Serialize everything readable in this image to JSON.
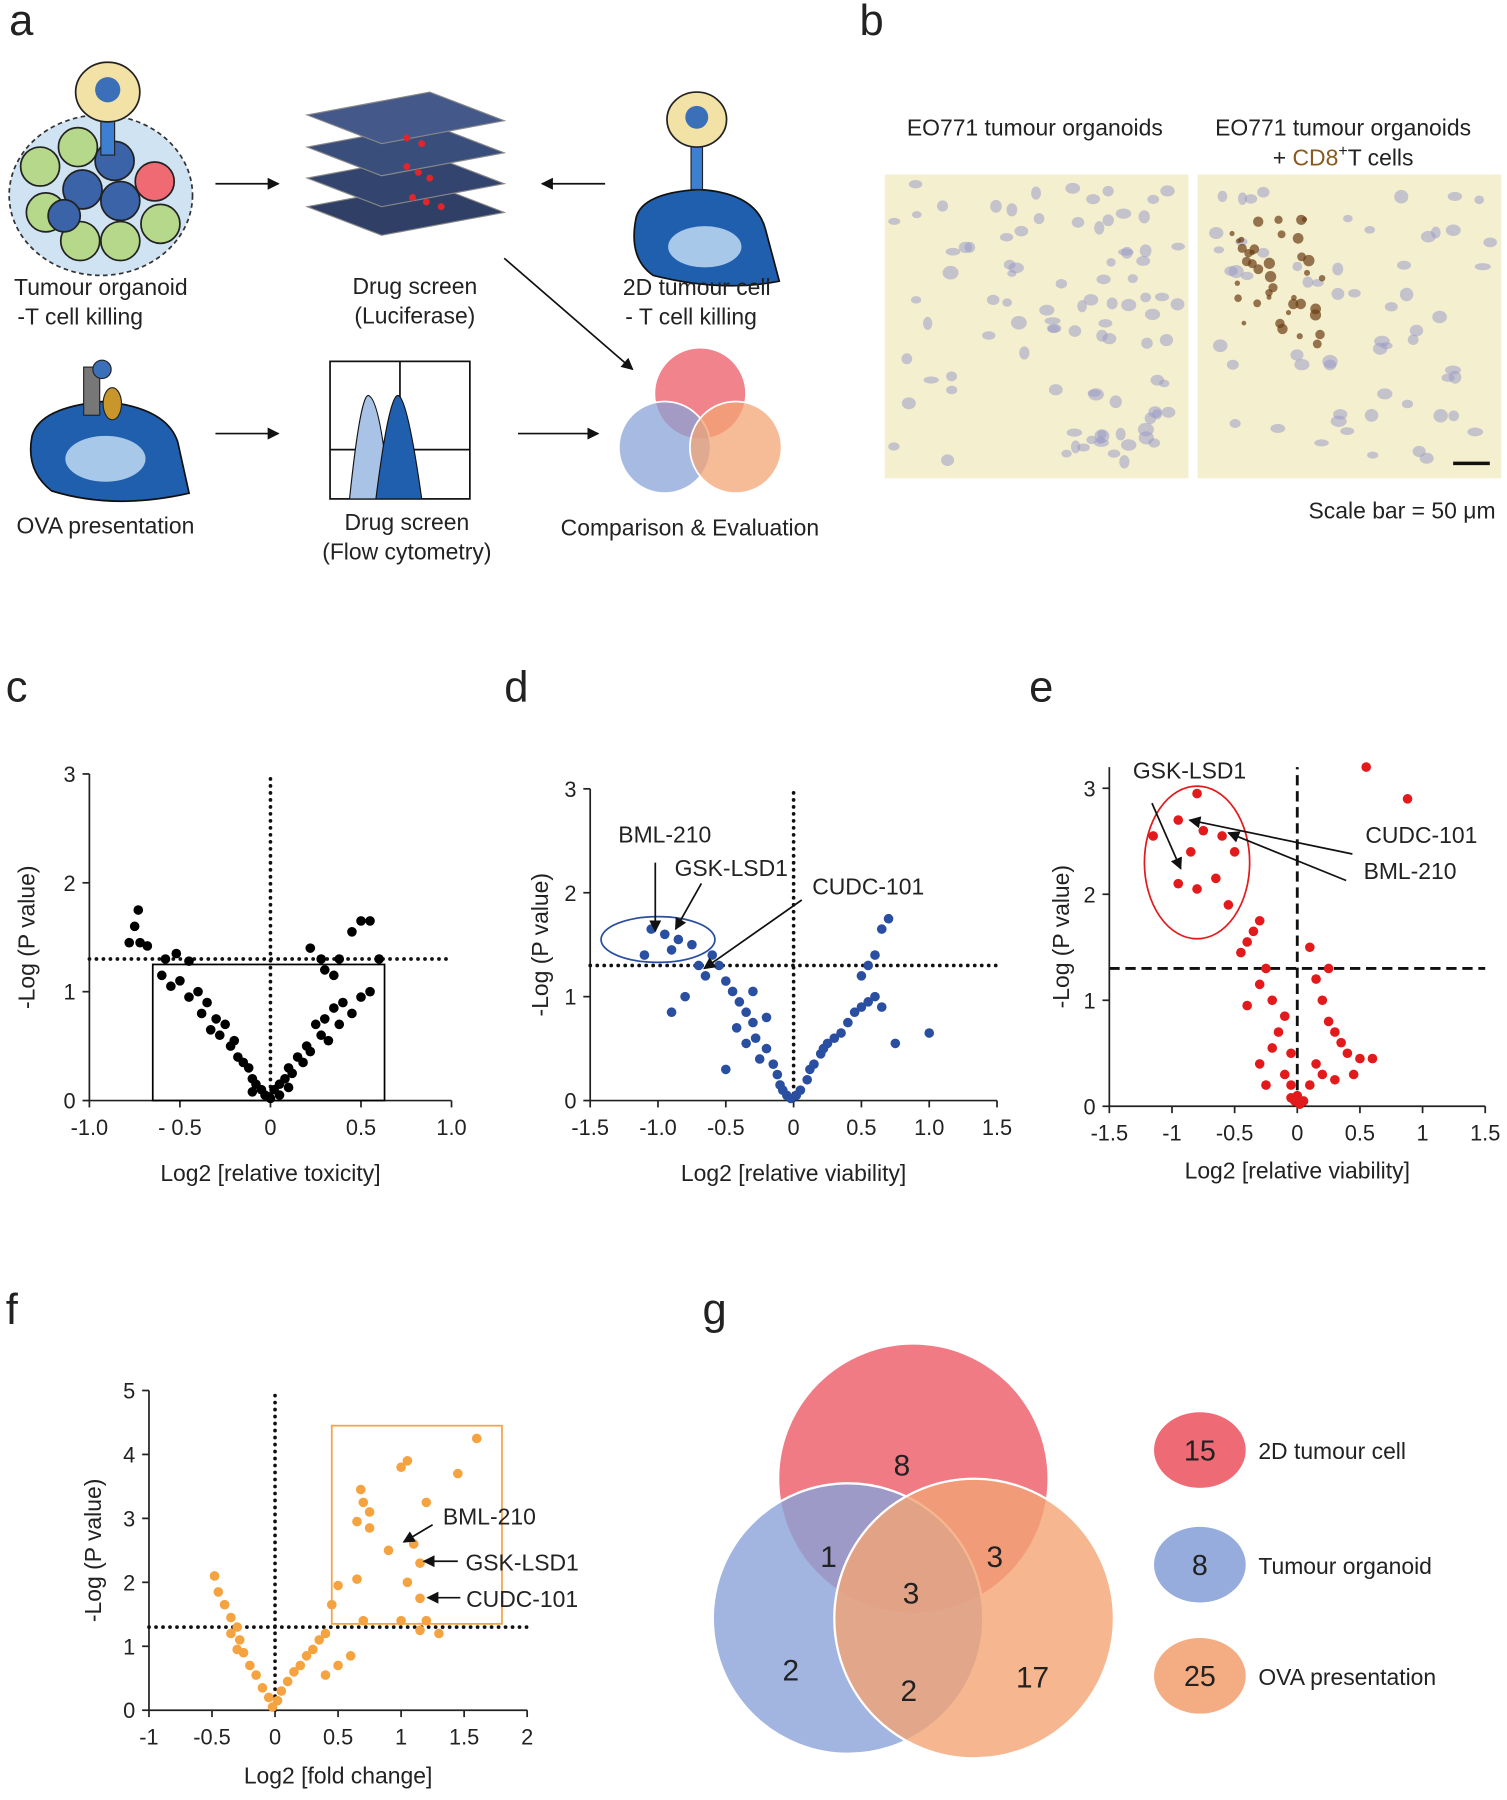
{
  "panel_labels": [
    "a",
    "b",
    "c",
    "d",
    "e",
    "f",
    "g"
  ],
  "schematic": {
    "labels": [
      "Tumour organoid",
      "-T cell killing",
      "Drug screen",
      "(Luciferase)",
      "2D tumour cell",
      "- T cell killing",
      "OVA presentation",
      "Drug screen",
      "(Flow cytometry)",
      "Comparison & Evaluation"
    ]
  },
  "micrographs": {
    "left_title": "EO771 tumour organoids",
    "right_title": "EO771 tumour organoids",
    "right_title_parts": [
      "+",
      "CD8",
      "+",
      "T cells"
    ],
    "scale_bar": "Scale bar = 50 μm"
  },
  "chart_data": [
    {
      "type": "scatter",
      "x_label": "Log2 [relative toxicity]",
      "y_label": "-Log (P value)",
      "xlim": [
        -1,
        1
      ],
      "ylim": [
        0,
        3
      ],
      "xticks": [
        {
          "value": -1,
          "label": "-1.0"
        },
        {
          "value": -0.5,
          "label": "- 0.5"
        },
        0,
        0.5,
        {
          "value": 1,
          "label": "1.0"
        }
      ],
      "yticks": [
        0,
        1,
        2,
        3
      ],
      "reference_lines": {
        "x": 0,
        "y": 1.3,
        "style": "dotted"
      },
      "highlight": {
        "shape": "rect",
        "x": [
          -0.65,
          0.63
        ],
        "y": [
          0,
          1.25
        ],
        "color": "#000000"
      },
      "series": [
        {
          "color": "#000000",
          "x": [
            -0.73,
            -0.75,
            -0.72,
            -0.68,
            -0.78,
            -0.58,
            -0.52,
            -0.45,
            -0.6,
            -0.55,
            -0.5,
            -0.45,
            -0.4,
            -0.35,
            -0.38,
            -0.3,
            -0.33,
            -0.28,
            -0.25,
            -0.22,
            -0.2,
            -0.18,
            -0.15,
            -0.12,
            -0.1,
            -0.08,
            -0.05,
            -0.03,
            0,
            0.02,
            0.05,
            0.08,
            0.1,
            0.12,
            0.15,
            0.18,
            0.2,
            0.22,
            0.25,
            0.28,
            0.3,
            0.32,
            0.35,
            0.38,
            0.4,
            0.45,
            0.5,
            0.55,
            0.3,
            0.35,
            0.38,
            0.45,
            0.5,
            0.55,
            0.6,
            0.28,
            0.22,
            -0.1,
            0.05,
            0.1
          ],
          "y": [
            1.75,
            1.6,
            1.45,
            1.42,
            1.45,
            1.3,
            1.35,
            1.28,
            1.15,
            1.05,
            1.1,
            0.95,
            1.0,
            0.9,
            0.8,
            0.75,
            0.65,
            0.6,
            0.7,
            0.5,
            0.55,
            0.4,
            0.35,
            0.3,
            0.2,
            0.15,
            0.1,
            0.05,
            0.02,
            0.1,
            0.15,
            0.2,
            0.3,
            0.25,
            0.4,
            0.35,
            0.5,
            0.45,
            0.7,
            0.6,
            0.75,
            0.55,
            0.85,
            0.7,
            0.9,
            0.8,
            0.95,
            1.0,
            1.2,
            1.15,
            1.3,
            1.55,
            1.65,
            1.65,
            1.3,
            1.3,
            1.4,
            0.08,
            0.05,
            0.12
          ]
        }
      ]
    },
    {
      "type": "scatter",
      "x_label": "Log2 [relative viability]",
      "y_label": "-Log (P value)",
      "xlim": [
        -1.5,
        1.5
      ],
      "ylim": [
        0,
        3
      ],
      "xticks": [
        -1.5,
        {
          "value": -1,
          "label": "-1.0"
        },
        -0.5,
        0,
        0.5,
        {
          "value": 1,
          "label": "1.0"
        },
        1.5
      ],
      "yticks": [
        0,
        1,
        2,
        3
      ],
      "reference_lines": {
        "x": 0,
        "y": 1.3,
        "style": "dotted"
      },
      "highlight": {
        "shape": "ellipse",
        "center": [
          -1.0,
          1.55
        ],
        "radius": [
          0.42,
          0.22
        ],
        "color": "#2a4ea0"
      },
      "annotations": [
        {
          "text": "BML-210",
          "at": [
            -0.95,
            2.56
          ],
          "from": [
            -1.02,
            2.29
          ],
          "to": [
            -1.02,
            1.63
          ]
        },
        {
          "text": "GSK-LSD1",
          "at": [
            -0.46,
            2.24
          ],
          "from": [
            -0.68,
            2.09
          ],
          "to": [
            -0.87,
            1.65
          ]
        },
        {
          "text": "CUDC-101",
          "at": [
            0.55,
            2.06
          ],
          "from": [
            0.06,
            1.93
          ],
          "to": [
            -0.66,
            1.27
          ]
        }
      ],
      "series": [
        {
          "color": "#2a4ea0",
          "x": [
            -1.05,
            -0.95,
            -0.85,
            -0.75,
            -0.9,
            -1.1,
            -0.6,
            -0.55,
            -0.7,
            -0.65,
            -0.5,
            -0.45,
            -0.8,
            -0.4,
            -0.35,
            -0.9,
            -0.3,
            -0.42,
            -0.28,
            -0.35,
            -0.2,
            -0.25,
            -0.15,
            -0.5,
            -0.12,
            -0.1,
            -0.08,
            -0.05,
            -0.02,
            0.02,
            0.05,
            0.1,
            0.12,
            0.15,
            0.2,
            0.22,
            0.25,
            0.3,
            0.35,
            0.4,
            0.45,
            0.5,
            0.55,
            0.6,
            0.65,
            0.5,
            0.55,
            0.6,
            0.65,
            0.7,
            0.75,
            1.0,
            -0.3,
            -0.2
          ],
          "y": [
            1.65,
            1.6,
            1.55,
            1.5,
            1.45,
            1.4,
            1.4,
            1.3,
            1.3,
            1.2,
            1.15,
            1.05,
            1.0,
            0.95,
            0.85,
            0.85,
            0.75,
            0.7,
            0.6,
            0.55,
            0.5,
            0.4,
            0.35,
            0.3,
            0.25,
            0.15,
            0.1,
            0.05,
            0.02,
            0.05,
            0.1,
            0.2,
            0.3,
            0.35,
            0.45,
            0.5,
            0.55,
            0.6,
            0.65,
            0.75,
            0.85,
            0.9,
            0.95,
            1.0,
            0.9,
            1.2,
            1.3,
            1.4,
            1.65,
            1.75,
            0.55,
            0.65,
            1.05,
            0.8
          ]
        }
      ]
    },
    {
      "type": "scatter",
      "x_label": "Log2 [relative viability]",
      "y_label": "-Log (P value)",
      "xlim": [
        -1.5,
        1.5
      ],
      "ylim": [
        0,
        3.2
      ],
      "xticks": [
        -1.5,
        -1,
        -0.5,
        0,
        0.5,
        1,
        1.5
      ],
      "yticks": [
        0,
        1,
        2,
        3
      ],
      "reference_lines": {
        "x": 0,
        "y": 1.3,
        "style": "dashed"
      },
      "highlight": {
        "shape": "ellipse",
        "center": [
          -0.8,
          2.3
        ],
        "radius": [
          0.42,
          0.72
        ],
        "color": "#e31a1c"
      },
      "annotations": [
        {
          "text": "GSK-LSD1",
          "at": [
            -0.86,
            3.17
          ],
          "from": [
            -1.16,
            2.86
          ],
          "to": [
            -0.93,
            2.24
          ]
        },
        {
          "text": "CUDC-101",
          "at": [
            0.99,
            2.56
          ],
          "from": [
            0.44,
            2.38
          ],
          "to": [
            -0.86,
            2.7
          ]
        },
        {
          "text": "BML-210",
          "at": [
            0.9,
            2.22
          ],
          "from": [
            0.39,
            2.13
          ],
          "to": [
            -0.55,
            2.58
          ]
        }
      ],
      "series": [
        {
          "color": "#e31a1c",
          "x": [
            0.55,
            0.88,
            -0.8,
            -1.15,
            -0.95,
            -0.75,
            -0.6,
            -0.85,
            -0.5,
            -0.95,
            -0.8,
            -0.65,
            -0.55,
            -0.3,
            -0.35,
            -0.4,
            -0.45,
            0.1,
            0.15,
            -0.25,
            -0.3,
            -0.2,
            0.2,
            -0.4,
            -0.1,
            0.25,
            -0.15,
            0.3,
            -0.2,
            0.35,
            -0.05,
            0.4,
            0.5,
            0.6,
            -0.3,
            0.15,
            -0.1,
            0.2,
            -0.05,
            0.1,
            0,
            0.05,
            -0.05,
            0.02,
            -0.02,
            0.3,
            0.45,
            -0.25,
            0.25
          ],
          "y": [
            3.2,
            2.9,
            2.95,
            2.55,
            2.7,
            2.6,
            2.55,
            2.4,
            2.4,
            2.1,
            2.05,
            2.15,
            1.9,
            1.75,
            1.65,
            1.55,
            1.45,
            1.5,
            1.2,
            1.3,
            1.15,
            1.0,
            1.0,
            0.95,
            0.85,
            0.8,
            0.7,
            0.7,
            0.55,
            0.6,
            0.5,
            0.5,
            0.45,
            0.45,
            0.4,
            0.4,
            0.3,
            0.3,
            0.2,
            0.2,
            0.1,
            0.05,
            0.08,
            0.02,
            0.05,
            0.25,
            0.3,
            0.2,
            1.3
          ]
        }
      ]
    },
    {
      "type": "scatter",
      "x_label": "Log2 [fold change]",
      "y_label": "-Log (P value)",
      "xlim": [
        -1,
        2
      ],
      "ylim": [
        0,
        5
      ],
      "xticks": [
        -1,
        -0.5,
        0,
        0.5,
        1,
        1.5,
        2
      ],
      "yticks": [
        0,
        1,
        2,
        3,
        4,
        5
      ],
      "reference_lines": {
        "x": 0,
        "y": 1.3,
        "style": "dotted"
      },
      "highlight": {
        "shape": "rect",
        "x": [
          0.45,
          1.8
        ],
        "y": [
          1.35,
          4.45
        ],
        "color": "#f4a340"
      },
      "annotations": [
        {
          "text": "BML-210",
          "at": [
            1.7,
            3.03
          ],
          "from": [
            1.25,
            2.9
          ],
          "to": [
            1.02,
            2.63
          ]
        },
        {
          "text": "GSK-LSD1",
          "at": [
            1.96,
            2.31
          ],
          "from": [
            1.45,
            2.33
          ],
          "to": [
            1.18,
            2.33
          ]
        },
        {
          "text": "CUDC-101",
          "at": [
            1.96,
            1.74
          ],
          "from": [
            1.47,
            1.76
          ],
          "to": [
            1.21,
            1.76
          ]
        }
      ],
      "series": [
        {
          "color": "#f4a340",
          "x": [
            1.6,
            1.45,
            1.05,
            1.0,
            0.68,
            0.7,
            0.75,
            0.65,
            0.75,
            1.2,
            0.9,
            1.1,
            1.15,
            1.05,
            0.65,
            0.5,
            1.15,
            0.45,
            1.2,
            1.0,
            0.7,
            1.15,
            1.3,
            0.4,
            0.35,
            0.3,
            0.25,
            0.2,
            0.15,
            0.1,
            0.05,
            0.02,
            -0.02,
            -0.05,
            -0.1,
            -0.15,
            -0.2,
            -0.25,
            -0.28,
            -0.3,
            -0.35,
            -0.4,
            -0.45,
            -0.48,
            -0.3,
            -0.35,
            0.5,
            0.4,
            0.6
          ],
          "y": [
            4.25,
            3.7,
            3.9,
            3.8,
            3.45,
            3.25,
            3.1,
            2.95,
            2.85,
            3.25,
            2.5,
            2.6,
            2.3,
            2.0,
            2.05,
            1.95,
            1.75,
            1.65,
            1.4,
            1.4,
            1.4,
            1.25,
            1.2,
            1.2,
            1.1,
            0.95,
            0.85,
            0.7,
            0.6,
            0.45,
            0.3,
            0.15,
            0.05,
            0.2,
            0.35,
            0.55,
            0.7,
            0.9,
            1.1,
            1.3,
            1.45,
            1.65,
            1.85,
            2.1,
            0.95,
            1.2,
            0.7,
            0.55,
            0.85
          ]
        }
      ]
    },
    {
      "type": "venn",
      "sets": [
        {
          "name": "2D tumour cell",
          "total": 15,
          "color": "#ec5a66"
        },
        {
          "name": "Tumour organoid",
          "total": 8,
          "color": "#8aa3d8"
        },
        {
          "name": "OVA presentation",
          "total": 25,
          "color": "#f3a474"
        }
      ],
      "regions": [
        {
          "sets": [
            0
          ],
          "value": 8
        },
        {
          "sets": [
            0,
            1
          ],
          "value": 1
        },
        {
          "sets": [
            0,
            2
          ],
          "value": 3
        },
        {
          "sets": [
            0,
            1,
            2
          ],
          "value": 3
        },
        {
          "sets": [
            1
          ],
          "value": 2
        },
        {
          "sets": [
            1,
            2
          ],
          "value": 2
        },
        {
          "sets": [
            2
          ],
          "value": 17
        }
      ]
    }
  ]
}
